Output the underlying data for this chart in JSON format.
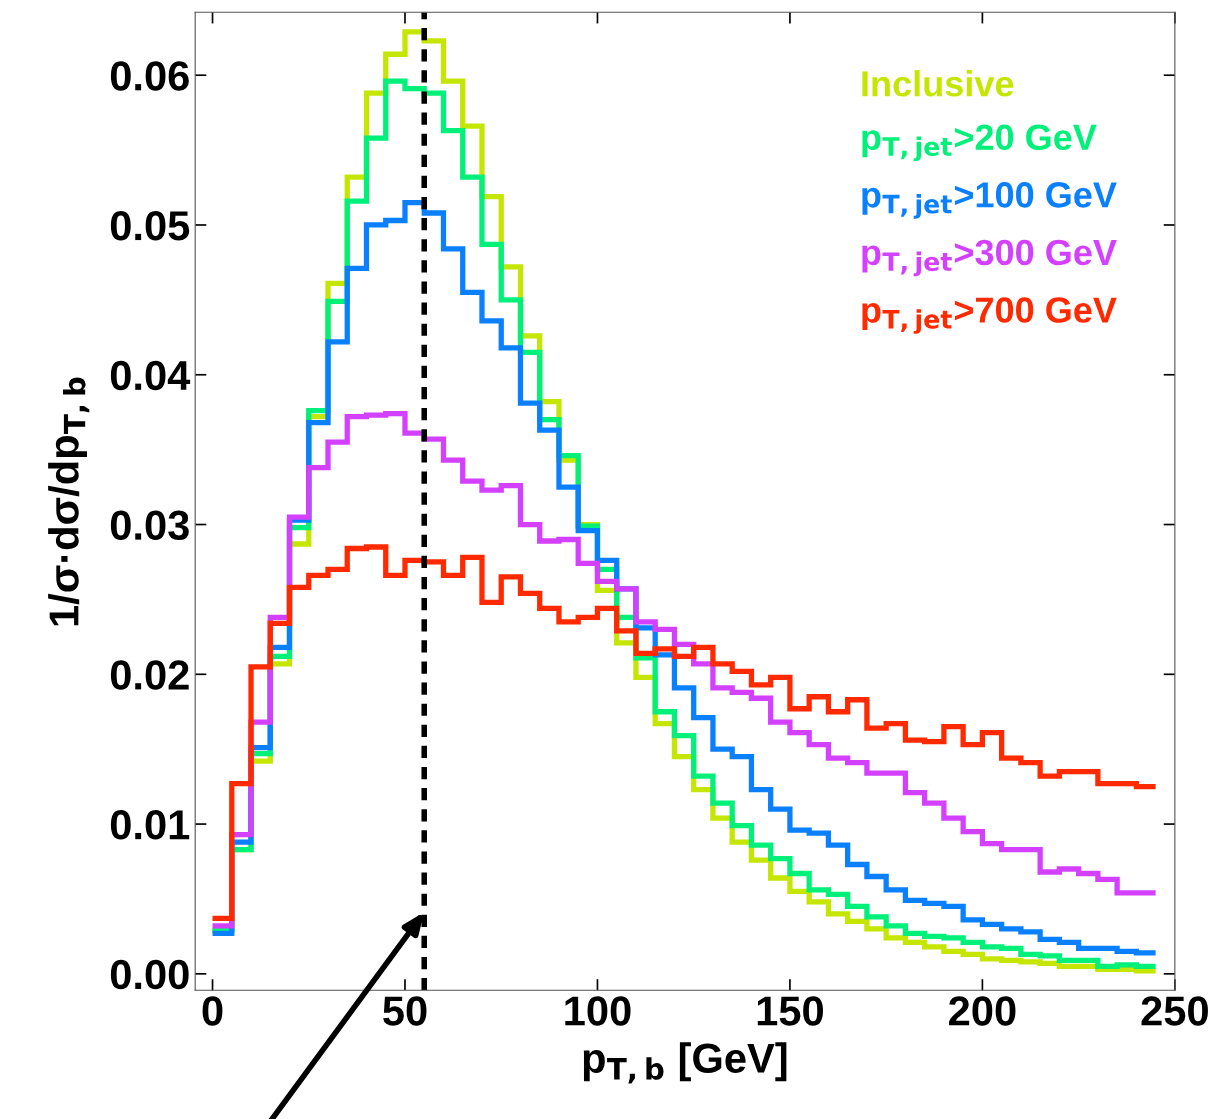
{
  "chart_data": {
    "type": "histogram",
    "xlabel": "p$_{T,b}$ [GeV]",
    "ylabel": "1/σ·dσ/dp$_{T,b}$",
    "bins": [
      0,
      5,
      10,
      15,
      20,
      25,
      30,
      35,
      40,
      45,
      50,
      55,
      60,
      65,
      70,
      75,
      80,
      85,
      90,
      95,
      100,
      105,
      110,
      115,
      120,
      125,
      130,
      135,
      140,
      145,
      150,
      155,
      160,
      165,
      170,
      175,
      180,
      185,
      190,
      195,
      200,
      205,
      210,
      215,
      220,
      225,
      230,
      235,
      240,
      245
    ],
    "series": [
      {
        "name": "Inclusive",
        "color": "#c4e600",
        "values": [
          0.0029,
          0.0083,
          0.0142,
          0.0207,
          0.0287,
          0.0372,
          0.0461,
          0.0532,
          0.0588,
          0.0614,
          0.0629,
          0.0623,
          0.0596,
          0.0566,
          0.0519,
          0.0472,
          0.0426,
          0.0382,
          0.0343,
          0.03,
          0.0256,
          0.0221,
          0.0198,
          0.0167,
          0.0145,
          0.0123,
          0.0104,
          0.0088,
          0.0076,
          0.0064,
          0.0055,
          0.0048,
          0.004,
          0.0035,
          0.003,
          0.0024,
          0.0021,
          0.0018,
          0.0015,
          0.0013,
          0.001,
          0.0009,
          0.0008,
          0.0007,
          0.0005,
          0.0005,
          0.0003,
          0.0003,
          0.0002
        ]
      },
      {
        "name": "p$_{T,jet}$>20 GeV",
        "color": "#00f07a",
        "values": [
          0.0029,
          0.0083,
          0.0147,
          0.0212,
          0.0298,
          0.0376,
          0.0449,
          0.0516,
          0.0558,
          0.0596,
          0.0591,
          0.0588,
          0.0563,
          0.0532,
          0.0487,
          0.045,
          0.0415,
          0.037,
          0.0346,
          0.0299,
          0.027,
          0.0238,
          0.0211,
          0.0175,
          0.0159,
          0.0132,
          0.0114,
          0.0099,
          0.0086,
          0.0077,
          0.0067,
          0.0056,
          0.0053,
          0.0045,
          0.0038,
          0.0032,
          0.0027,
          0.0025,
          0.0024,
          0.0021,
          0.0018,
          0.0017,
          0.0013,
          0.0012,
          0.0009,
          0.0009,
          0.0005,
          0.0006,
          0.0005
        ]
      },
      {
        "name": "p$_{T,jet}$>100 GeV",
        "color": "#0a80ff",
        "values": [
          0.0027,
          0.0088,
          0.0151,
          0.0218,
          0.0303,
          0.0368,
          0.0422,
          0.0471,
          0.05,
          0.0503,
          0.0515,
          0.0508,
          0.0484,
          0.0455,
          0.0436,
          0.0418,
          0.0381,
          0.0363,
          0.0325,
          0.0296,
          0.0276,
          0.0257,
          0.0231,
          0.0213,
          0.0191,
          0.0171,
          0.015,
          0.0145,
          0.0123,
          0.011,
          0.0096,
          0.0094,
          0.0086,
          0.0073,
          0.0065,
          0.0056,
          0.0049,
          0.0047,
          0.0045,
          0.0036,
          0.0033,
          0.003,
          0.0028,
          0.0023,
          0.0021,
          0.0017,
          0.0017,
          0.0015,
          0.0014
        ]
      },
      {
        "name": "p$_{T,jet}$>300 GeV",
        "color": "#d440ff",
        "values": [
          0.0032,
          0.0093,
          0.0168,
          0.0238,
          0.0305,
          0.0338,
          0.0355,
          0.0372,
          0.0373,
          0.0374,
          0.0361,
          0.0357,
          0.0343,
          0.0329,
          0.0323,
          0.0326,
          0.03,
          0.0289,
          0.029,
          0.0274,
          0.0262,
          0.0257,
          0.0235,
          0.023,
          0.022,
          0.0207,
          0.0191,
          0.0188,
          0.0184,
          0.0168,
          0.0161,
          0.0153,
          0.0144,
          0.0141,
          0.0134,
          0.0134,
          0.0121,
          0.0114,
          0.0104,
          0.0095,
          0.0087,
          0.0083,
          0.0083,
          0.0068,
          0.007,
          0.0067,
          0.0063,
          0.0054,
          0.0054
        ]
      },
      {
        "name": "p$_{T,jet}$>700 GeV",
        "color": "#ff2a00",
        "values": [
          0.0037,
          0.0127,
          0.0205,
          0.0234,
          0.0258,
          0.0266,
          0.027,
          0.0284,
          0.0285,
          0.0266,
          0.0276,
          0.0275,
          0.0266,
          0.0278,
          0.0248,
          0.0265,
          0.0254,
          0.0244,
          0.0235,
          0.0238,
          0.0244,
          0.0229,
          0.0214,
          0.0217,
          0.0212,
          0.0218,
          0.0207,
          0.0202,
          0.0193,
          0.0198,
          0.0177,
          0.0185,
          0.0175,
          0.0183,
          0.0164,
          0.0167,
          0.0156,
          0.0155,
          0.0165,
          0.0153,
          0.0161,
          0.0144,
          0.0141,
          0.0132,
          0.0135,
          0.0135,
          0.0127,
          0.0127,
          0.0125
        ]
      }
    ],
    "xlim": [
      -4.5,
      250
    ],
    "ylim": [
      -0.0011,
      0.0642
    ],
    "xticks": [
      0,
      50,
      100,
      150,
      200,
      250
    ],
    "yticks": [
      {
        "value": 0,
        "label": "0.00"
      },
      {
        "value": 0.01,
        "label": "0.01"
      },
      {
        "value": 0.02,
        "label": "0.02"
      },
      {
        "value": 0.03,
        "label": "0.03"
      },
      {
        "value": 0.04,
        "label": "0.04"
      },
      {
        "value": 0.05,
        "label": "0.05"
      },
      {
        "value": 0.06,
        "label": "0.06"
      }
    ],
    "ref_lines": [
      {
        "axis": "x",
        "value": 55,
        "color": "#000000",
        "line_style": "dashed"
      }
    ],
    "legend": "top right",
    "grid": false
  }
}
